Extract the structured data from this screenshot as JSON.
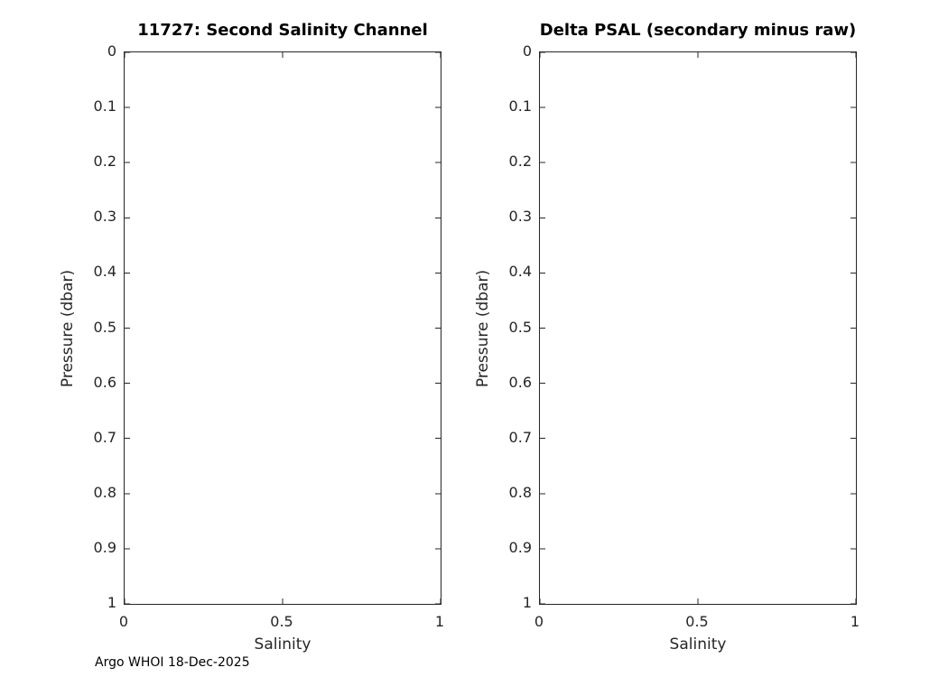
{
  "figure": {
    "footer": "Argo WHOI 18-Dec-2025"
  },
  "chart_data": [
    {
      "type": "scatter",
      "title": "11727: Second Salinity Channel",
      "xlabel": "Salinity",
      "ylabel": "Pressure (dbar)",
      "xlim": [
        0,
        1
      ],
      "ylim": [
        0,
        1
      ],
      "y_inverted": true,
      "grid": false,
      "box": true,
      "xticks": [
        0,
        0.5,
        1
      ],
      "xtick_labels": [
        "0",
        "0.5",
        "1"
      ],
      "yticks": [
        0,
        0.1,
        0.2,
        0.3,
        0.4,
        0.5,
        0.6,
        0.7,
        0.8,
        0.9,
        1
      ],
      "ytick_labels": [
        "0",
        "0.1",
        "0.2",
        "0.3",
        "0.4",
        "0.5",
        "0.6",
        "0.7",
        "0.8",
        "0.9",
        "1"
      ],
      "series": []
    },
    {
      "type": "scatter",
      "title": "Delta PSAL (secondary minus raw)",
      "xlabel": "Salinity",
      "ylabel": "Pressure (dbar)",
      "xlim": [
        0,
        1
      ],
      "ylim": [
        0,
        1
      ],
      "y_inverted": true,
      "grid": false,
      "box": true,
      "xticks": [
        0,
        0.5,
        1
      ],
      "xtick_labels": [
        "0",
        "0.5",
        "1"
      ],
      "yticks": [
        0,
        0.1,
        0.2,
        0.3,
        0.4,
        0.5,
        0.6,
        0.7,
        0.8,
        0.9,
        1
      ],
      "ytick_labels": [
        "0",
        "0.1",
        "0.2",
        "0.3",
        "0.4",
        "0.5",
        "0.6",
        "0.7",
        "0.8",
        "0.9",
        "1"
      ],
      "series": []
    }
  ]
}
